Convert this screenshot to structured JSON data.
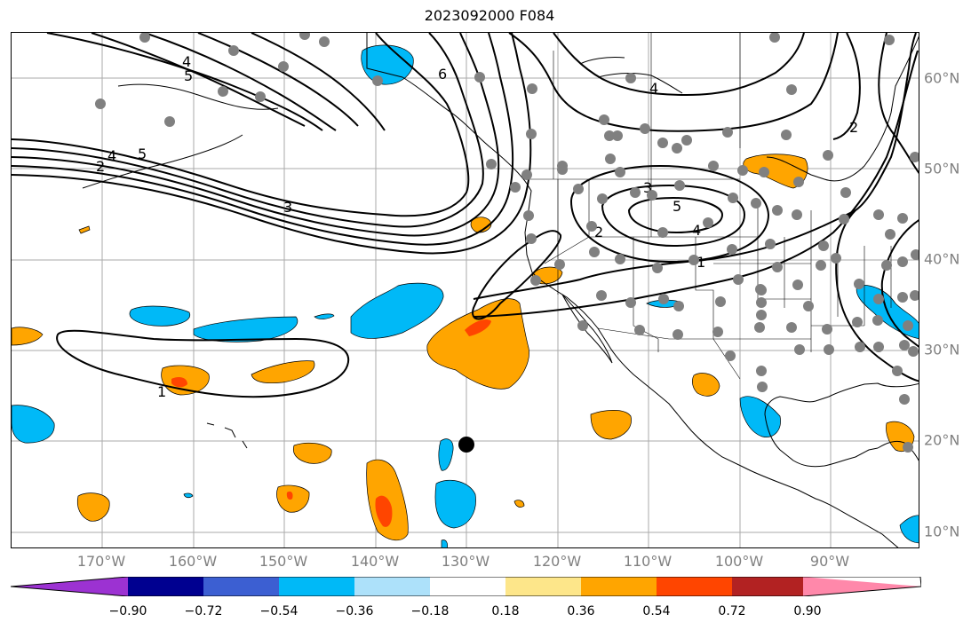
{
  "title": "2023092000 F084",
  "lon_labels": [
    "170°W",
    "160°W",
    "150°W",
    "140°W",
    "130°W",
    "120°W",
    "110°W",
    "100°W",
    "90°W"
  ],
  "lat_labels": [
    "60°N",
    "50°N",
    "40°N",
    "30°N",
    "20°N",
    "10°N"
  ],
  "colorbar": {
    "colors": [
      "#9c32d2",
      "#000090",
      "#3c5fd2",
      "#00b9f7",
      "#ade1fa",
      "#ffffff",
      "#fde68a",
      "#ffa500",
      "#ff4500",
      "#b22222",
      "#ff88aa"
    ],
    "labels": [
      "−0.90",
      "−0.72",
      "−0.54",
      "−0.36",
      "−0.18",
      "0.18",
      "0.36",
      "0.54",
      "0.72",
      "0.90"
    ]
  },
  "contour_labels": [
    "4",
    "5",
    "6",
    "2",
    "4",
    "5",
    "3",
    "3",
    "5",
    "4",
    "2",
    "1",
    "1",
    "2",
    "4"
  ],
  "marker": {
    "name": "storm-position-marker",
    "lon": -130,
    "lat": 19.5
  }
}
